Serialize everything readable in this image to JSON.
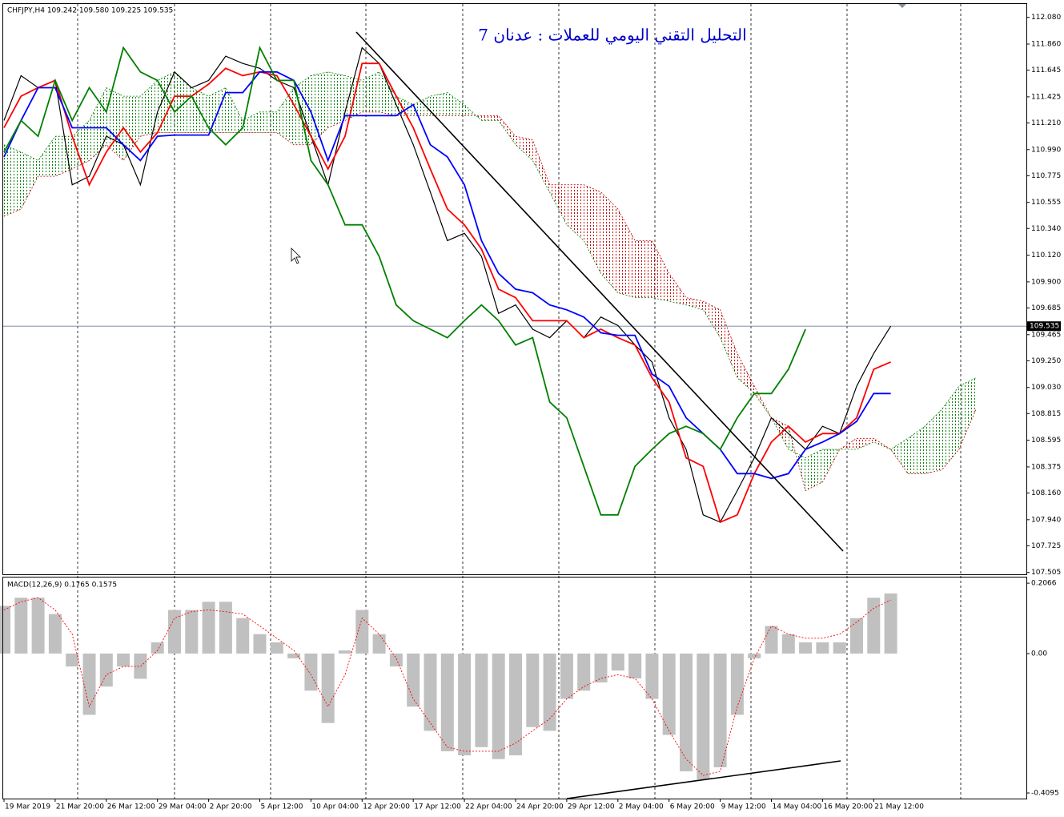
{
  "chart_data": [
    {
      "type": "line",
      "title": "CHFJPY,H4  109.242 109.580 109.225 109.535",
      "annotation": "التحليل التقني اليومي للعملات : عدنان 7",
      "categories": [
        "19 Mar 2019",
        null,
        null,
        "21 Mar 20:00",
        null,
        null,
        "26 Mar 12:00",
        null,
        null,
        "29 Mar 04:00",
        null,
        null,
        "2 Apr 20:00",
        null,
        null,
        "5 Apr 12:00",
        null,
        null,
        "10 Apr 04:00",
        null,
        null,
        "12 Apr 20:00",
        null,
        null,
        "17 Apr 12:00",
        null,
        null,
        "22 Apr 04:00",
        null,
        null,
        "24 Apr 20:00",
        null,
        null,
        "29 Apr 12:00",
        null,
        null,
        "2 May 04:00",
        null,
        null,
        "6 May 20:00",
        null,
        null,
        "9 May 12:00",
        null,
        null,
        "14 May 04:00",
        null,
        null,
        "16 May 20:00",
        null,
        null,
        "21 May 12:00",
        null,
        null,
        null,
        null,
        null,
        null
      ],
      "series": [
        {
          "color": "#000000",
          "values": [
            111.23,
            111.6,
            111.5,
            111.56,
            110.7,
            110.77,
            111.1,
            111.03,
            110.7,
            111.3,
            111.63,
            111.5,
            111.56,
            111.76,
            111.7,
            111.66,
            111.56,
            111.5,
            111.1,
            110.7,
            111.3,
            111.83,
            111.7,
            111.36,
            111.03,
            110.64,
            110.24,
            110.3,
            110.11,
            109.64,
            109.71,
            109.51,
            109.44,
            109.58,
            109.44,
            109.61,
            109.54,
            109.38,
            109.24,
            108.78,
            108.52,
            107.98,
            107.92,
            108.18,
            108.45,
            108.78,
            108.65,
            108.52,
            108.71,
            108.65,
            109.04,
            109.31,
            109.535,
            null,
            null,
            null,
            null,
            null
          ]
        },
        {
          "color": "#ff0000",
          "values": [
            111.17,
            111.43,
            111.5,
            111.56,
            111.1,
            110.7,
            110.97,
            111.17,
            110.97,
            111.13,
            111.43,
            111.43,
            111.53,
            111.66,
            111.6,
            111.63,
            111.6,
            111.36,
            111.1,
            110.83,
            111.1,
            111.7,
            111.7,
            111.43,
            111.17,
            110.83,
            110.5,
            110.37,
            110.17,
            109.84,
            109.77,
            109.58,
            109.58,
            109.58,
            109.44,
            109.51,
            109.44,
            109.38,
            109.11,
            108.91,
            108.45,
            108.38,
            107.92,
            107.98,
            108.32,
            108.58,
            108.71,
            108.58,
            108.65,
            108.65,
            108.78,
            109.18,
            109.24,
            null,
            null,
            null,
            null,
            null
          ]
        },
        {
          "color": "#0000ff",
          "values": [
            110.93,
            111.23,
            111.5,
            111.5,
            111.17,
            111.17,
            111.17,
            111.03,
            110.9,
            111.1,
            111.11,
            111.11,
            111.11,
            111.46,
            111.46,
            111.63,
            111.63,
            111.56,
            111.3,
            110.9,
            111.27,
            111.27,
            111.27,
            111.27,
            111.36,
            111.03,
            110.93,
            110.7,
            110.24,
            109.97,
            109.84,
            109.81,
            109.71,
            109.67,
            109.61,
            109.48,
            109.46,
            109.46,
            109.14,
            109.04,
            108.78,
            108.65,
            108.52,
            108.32,
            108.32,
            108.28,
            108.32,
            108.52,
            108.58,
            108.65,
            108.75,
            108.98,
            108.98,
            null,
            null,
            null,
            null,
            null
          ]
        },
        {
          "color": "#008000",
          "values": [
            110.97,
            111.23,
            111.1,
            111.56,
            111.23,
            111.5,
            111.3,
            111.83,
            111.63,
            111.56,
            111.3,
            111.43,
            111.17,
            111.03,
            111.17,
            111.83,
            111.56,
            111.56,
            110.9,
            110.7,
            110.37,
            110.37,
            110.11,
            109.71,
            109.58,
            109.51,
            109.44,
            109.58,
            109.71,
            109.58,
            109.38,
            109.44,
            108.91,
            108.78,
            108.38,
            107.98,
            107.98,
            108.38,
            108.52,
            108.65,
            108.71,
            108.65,
            108.52,
            108.78,
            108.98,
            108.98,
            109.18,
            109.51,
            null,
            null,
            null,
            null,
            null,
            null,
            null,
            null,
            null,
            null
          ]
        }
      ],
      "cloud": {
        "colors": [
          "#008000",
          "#c00000"
        ],
        "span_a": [
          111.03,
          110.97,
          110.9,
          111.1,
          111.1,
          111.23,
          111.5,
          111.43,
          111.43,
          111.56,
          111.63,
          111.5,
          111.43,
          111.5,
          111.23,
          111.3,
          111.3,
          111.5,
          111.6,
          111.63,
          111.6,
          111.56,
          111.63,
          111.43,
          111.36,
          111.43,
          111.46,
          111.36,
          111.23,
          111.23,
          111.03,
          110.9,
          110.64,
          110.37,
          110.24,
          109.97,
          109.81,
          109.77,
          109.77,
          109.74,
          109.71,
          109.67,
          109.44,
          109.11,
          108.98,
          108.78,
          108.52,
          108.45,
          108.52,
          108.52,
          108.52,
          108.58,
          108.52,
          108.61,
          108.71,
          108.85,
          109.04,
          109.11
        ],
        "span_b": [
          110.44,
          110.5,
          110.77,
          110.77,
          110.83,
          110.9,
          111.03,
          110.9,
          111.1,
          111.13,
          111.13,
          111.13,
          111.13,
          111.13,
          111.13,
          111.13,
          111.13,
          111.03,
          111.03,
          111.17,
          111.23,
          111.3,
          111.3,
          111.27,
          111.27,
          111.27,
          111.27,
          111.27,
          111.27,
          111.27,
          111.1,
          111.07,
          110.7,
          110.7,
          110.7,
          110.64,
          110.5,
          110.24,
          110.24,
          109.97,
          109.77,
          109.74,
          109.67,
          109.31,
          109.04,
          108.78,
          108.71,
          108.18,
          108.25,
          108.52,
          108.61,
          108.61,
          108.52,
          108.32,
          108.32,
          108.35,
          108.52,
          108.85
        ]
      },
      "last_price": 109.535,
      "ylim": [
        107.49,
        112.19
      ],
      "yticks": [
        {
          "value": 112.08,
          "label": "112.080"
        },
        {
          "value": 111.86,
          "label": "111.860"
        },
        111.645,
        111.425,
        {
          "value": 111.21,
          "label": "111.210"
        },
        {
          "value": 110.99,
          "label": "110.990"
        },
        110.775,
        110.555,
        {
          "value": 110.34,
          "label": "110.340"
        },
        {
          "value": 110.12,
          "label": "110.120"
        },
        {
          "value": 109.9,
          "label": "109.900"
        },
        109.685,
        109.465,
        {
          "value": 109.25,
          "label": "109.250"
        },
        {
          "value": 109.03,
          "label": "109.030"
        },
        108.815,
        108.595,
        108.375,
        {
          "value": 108.16,
          "label": "108.160"
        },
        {
          "value": 107.94,
          "label": "107.940"
        },
        107.725,
        107.505
      ]
    },
    {
      "type": "bar",
      "title": "MACD(12,26,9) 0.1765 0.1575",
      "color": "#c0c0c0",
      "values": [
        0.14,
        0.164,
        0.164,
        0.116,
        -0.038,
        -0.18,
        -0.097,
        -0.038,
        -0.074,
        0.033,
        0.128,
        0.128,
        0.152,
        0.152,
        0.104,
        0.057,
        0.033,
        -0.014,
        -0.109,
        -0.204,
        0.009,
        0.128,
        0.057,
        -0.038,
        -0.156,
        -0.227,
        -0.287,
        -0.299,
        -0.275,
        -0.31,
        -0.299,
        -0.216,
        -0.227,
        -0.133,
        -0.109,
        -0.085,
        -0.05,
        -0.073,
        -0.133,
        -0.239,
        -0.346,
        -0.37,
        -0.334,
        -0.18,
        -0.014,
        0.081,
        0.057,
        0.033,
        0.033,
        0.033,
        0.104,
        0.164,
        0.1765
      ],
      "series": [
        {
          "color": "#ff0000",
          "values": [
            0.128,
            0.152,
            0.164,
            0.128,
            0.057,
            -0.156,
            -0.062,
            -0.038,
            -0.038,
            0.009,
            0.104,
            0.123,
            0.128,
            0.123,
            0.116,
            0.081,
            0.045,
            0.009,
            -0.062,
            -0.156,
            -0.062,
            0.104,
            0.057,
            -0.014,
            -0.133,
            -0.204,
            -0.275,
            -0.287,
            -0.287,
            -0.287,
            -0.263,
            -0.227,
            -0.192,
            -0.133,
            -0.097,
            -0.073,
            -0.062,
            -0.073,
            -0.133,
            -0.227,
            -0.31,
            -0.358,
            -0.346,
            -0.156,
            -0.014,
            0.081,
            0.057,
            0.045,
            0.045,
            0.057,
            0.092,
            0.133,
            0.1575
          ]
        }
      ],
      "ylim": [
        -0.426,
        0.221
      ],
      "yticks": [
        0.2066,
        {
          "value": 0,
          "label": "0.00"
        },
        -0.4095
      ]
    }
  ]
}
